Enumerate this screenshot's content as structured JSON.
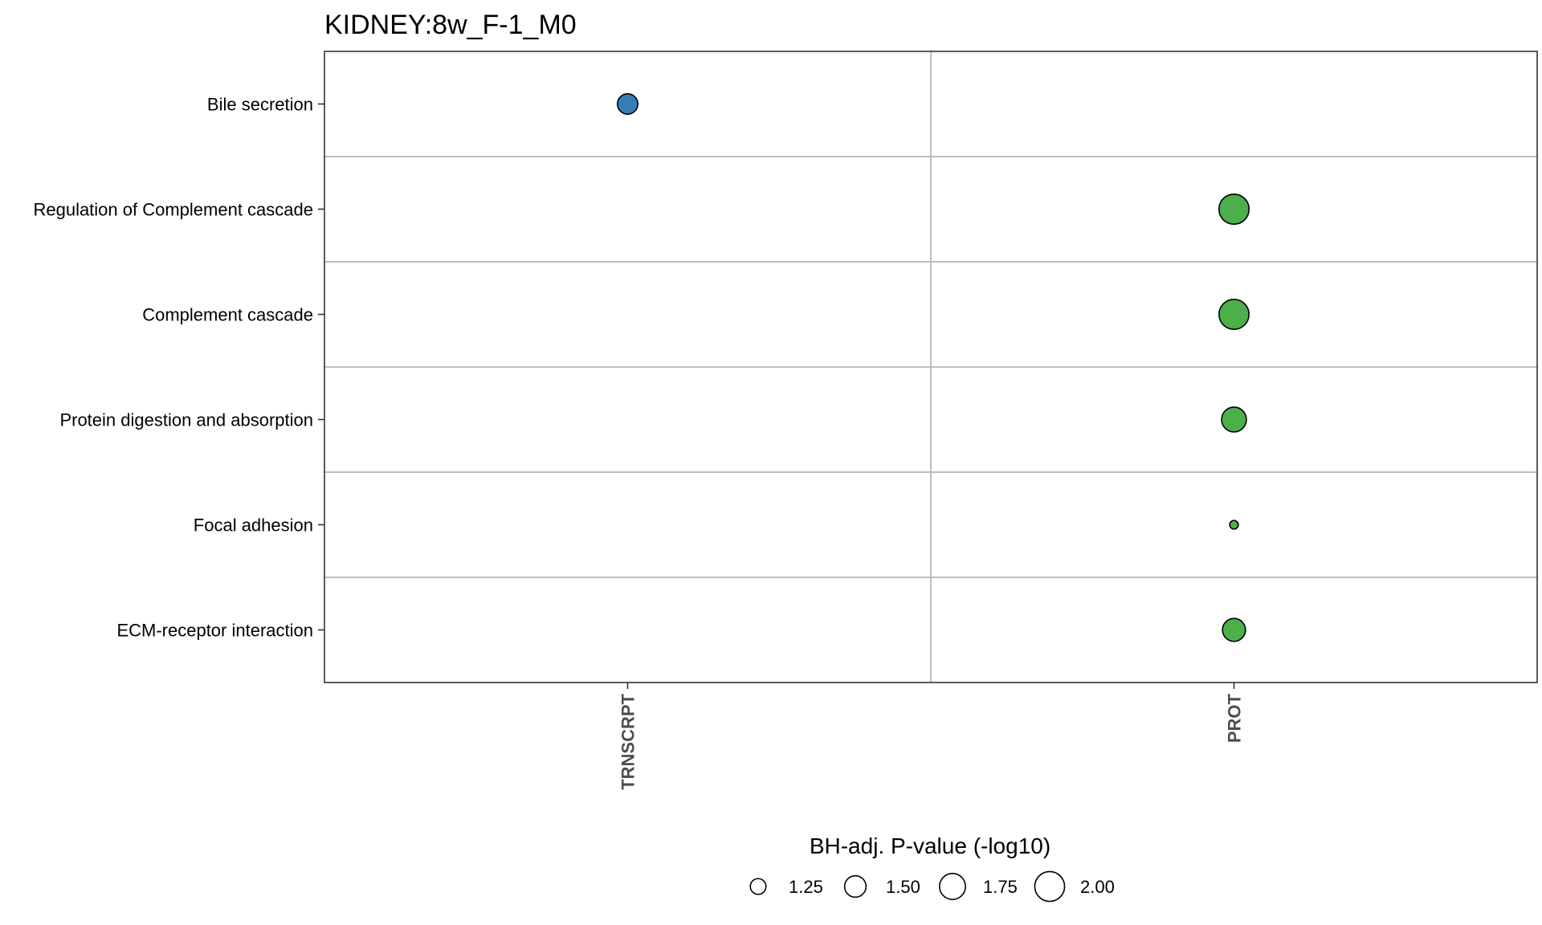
{
  "chart_data": {
    "type": "scatter",
    "title": "KIDNEY:8w_F-1_M0",
    "x_categories": [
      "TRNSCRPT",
      "PROT"
    ],
    "y_categories": [
      "Bile secretion",
      "Regulation of Complement cascade",
      "Complement cascade",
      "Protein digestion and absorption",
      "Focal adhesion",
      "ECM-receptor interaction"
    ],
    "points": [
      {
        "x": "TRNSCRPT",
        "y": "Bile secretion",
        "size": 1.45,
        "color": "#377eb8"
      },
      {
        "x": "PROT",
        "y": "Regulation of Complement cascade",
        "size": 2.02,
        "color": "#4daf4a"
      },
      {
        "x": "PROT",
        "y": "Complement cascade",
        "size": 2.01,
        "color": "#4daf4a"
      },
      {
        "x": "PROT",
        "y": "Protein digestion and absorption",
        "size": 1.68,
        "color": "#4daf4a"
      },
      {
        "x": "PROT",
        "y": "Focal adhesion",
        "size": 1.05,
        "color": "#4daf4a"
      },
      {
        "x": "PROT",
        "y": "ECM-receptor interaction",
        "size": 1.58,
        "color": "#4daf4a"
      }
    ],
    "size_legend": {
      "title": "BH-adj. P-value (-log10)",
      "values": [
        1.25,
        1.5,
        1.75,
        2.0
      ],
      "labels": [
        "1.25",
        "1.50",
        "1.75",
        "2.00"
      ],
      "placement": "bottom"
    },
    "grid": true
  }
}
